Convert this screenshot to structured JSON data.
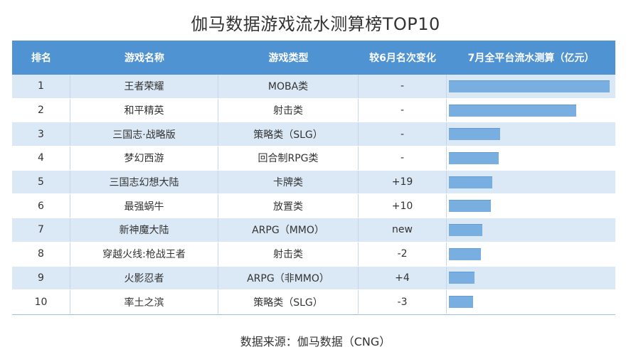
{
  "chart_data": {
    "type": "table",
    "title": "伽马数据游戏流水测算榜TOP10",
    "columns": [
      "排名",
      "游戏名称",
      "游戏类型",
      "较6月名次变化",
      "7月全平台流水测算（亿元）"
    ],
    "rows": [
      {
        "rank": "1",
        "name": "王者荣耀",
        "genre": "MOBA类",
        "change": "-",
        "value": 1.0
      },
      {
        "rank": "2",
        "name": "和平精英",
        "genre": "射击类",
        "change": "-",
        "value": 0.79
      },
      {
        "rank": "3",
        "name": "三国志·战略版",
        "genre": "策略类（SLG）",
        "change": "-",
        "value": 0.32
      },
      {
        "rank": "4",
        "name": "梦幻西游",
        "genre": "回合制RPG类",
        "change": "-",
        "value": 0.31
      },
      {
        "rank": "5",
        "name": "三国志幻想大陆",
        "genre": "卡牌类",
        "change": "+19",
        "value": 0.27
      },
      {
        "rank": "6",
        "name": "最强蜗牛",
        "genre": "放置类",
        "change": "+10",
        "value": 0.26
      },
      {
        "rank": "7",
        "name": "新神魔大陆",
        "genre": "ARPG（MMO）",
        "change": "new",
        "value": 0.21
      },
      {
        "rank": "8",
        "name": "穿越火线:枪战王者",
        "genre": "射击类",
        "change": "-2",
        "value": 0.2
      },
      {
        "rank": "9",
        "name": "火影忍者",
        "genre": "ARPG（非MMO）",
        "change": "+4",
        "value": 0.16
      },
      {
        "rank": "10",
        "name": "率土之滨",
        "genre": "策略类（SLG）",
        "change": "-3",
        "value": 0.15
      }
    ],
    "value_max": 1.0
  },
  "source": "数据来源：伽马数据（CNG）",
  "colors": {
    "header": "#4f93d3",
    "row_alt": "#dbe8f5",
    "bar": "#79aee0"
  }
}
